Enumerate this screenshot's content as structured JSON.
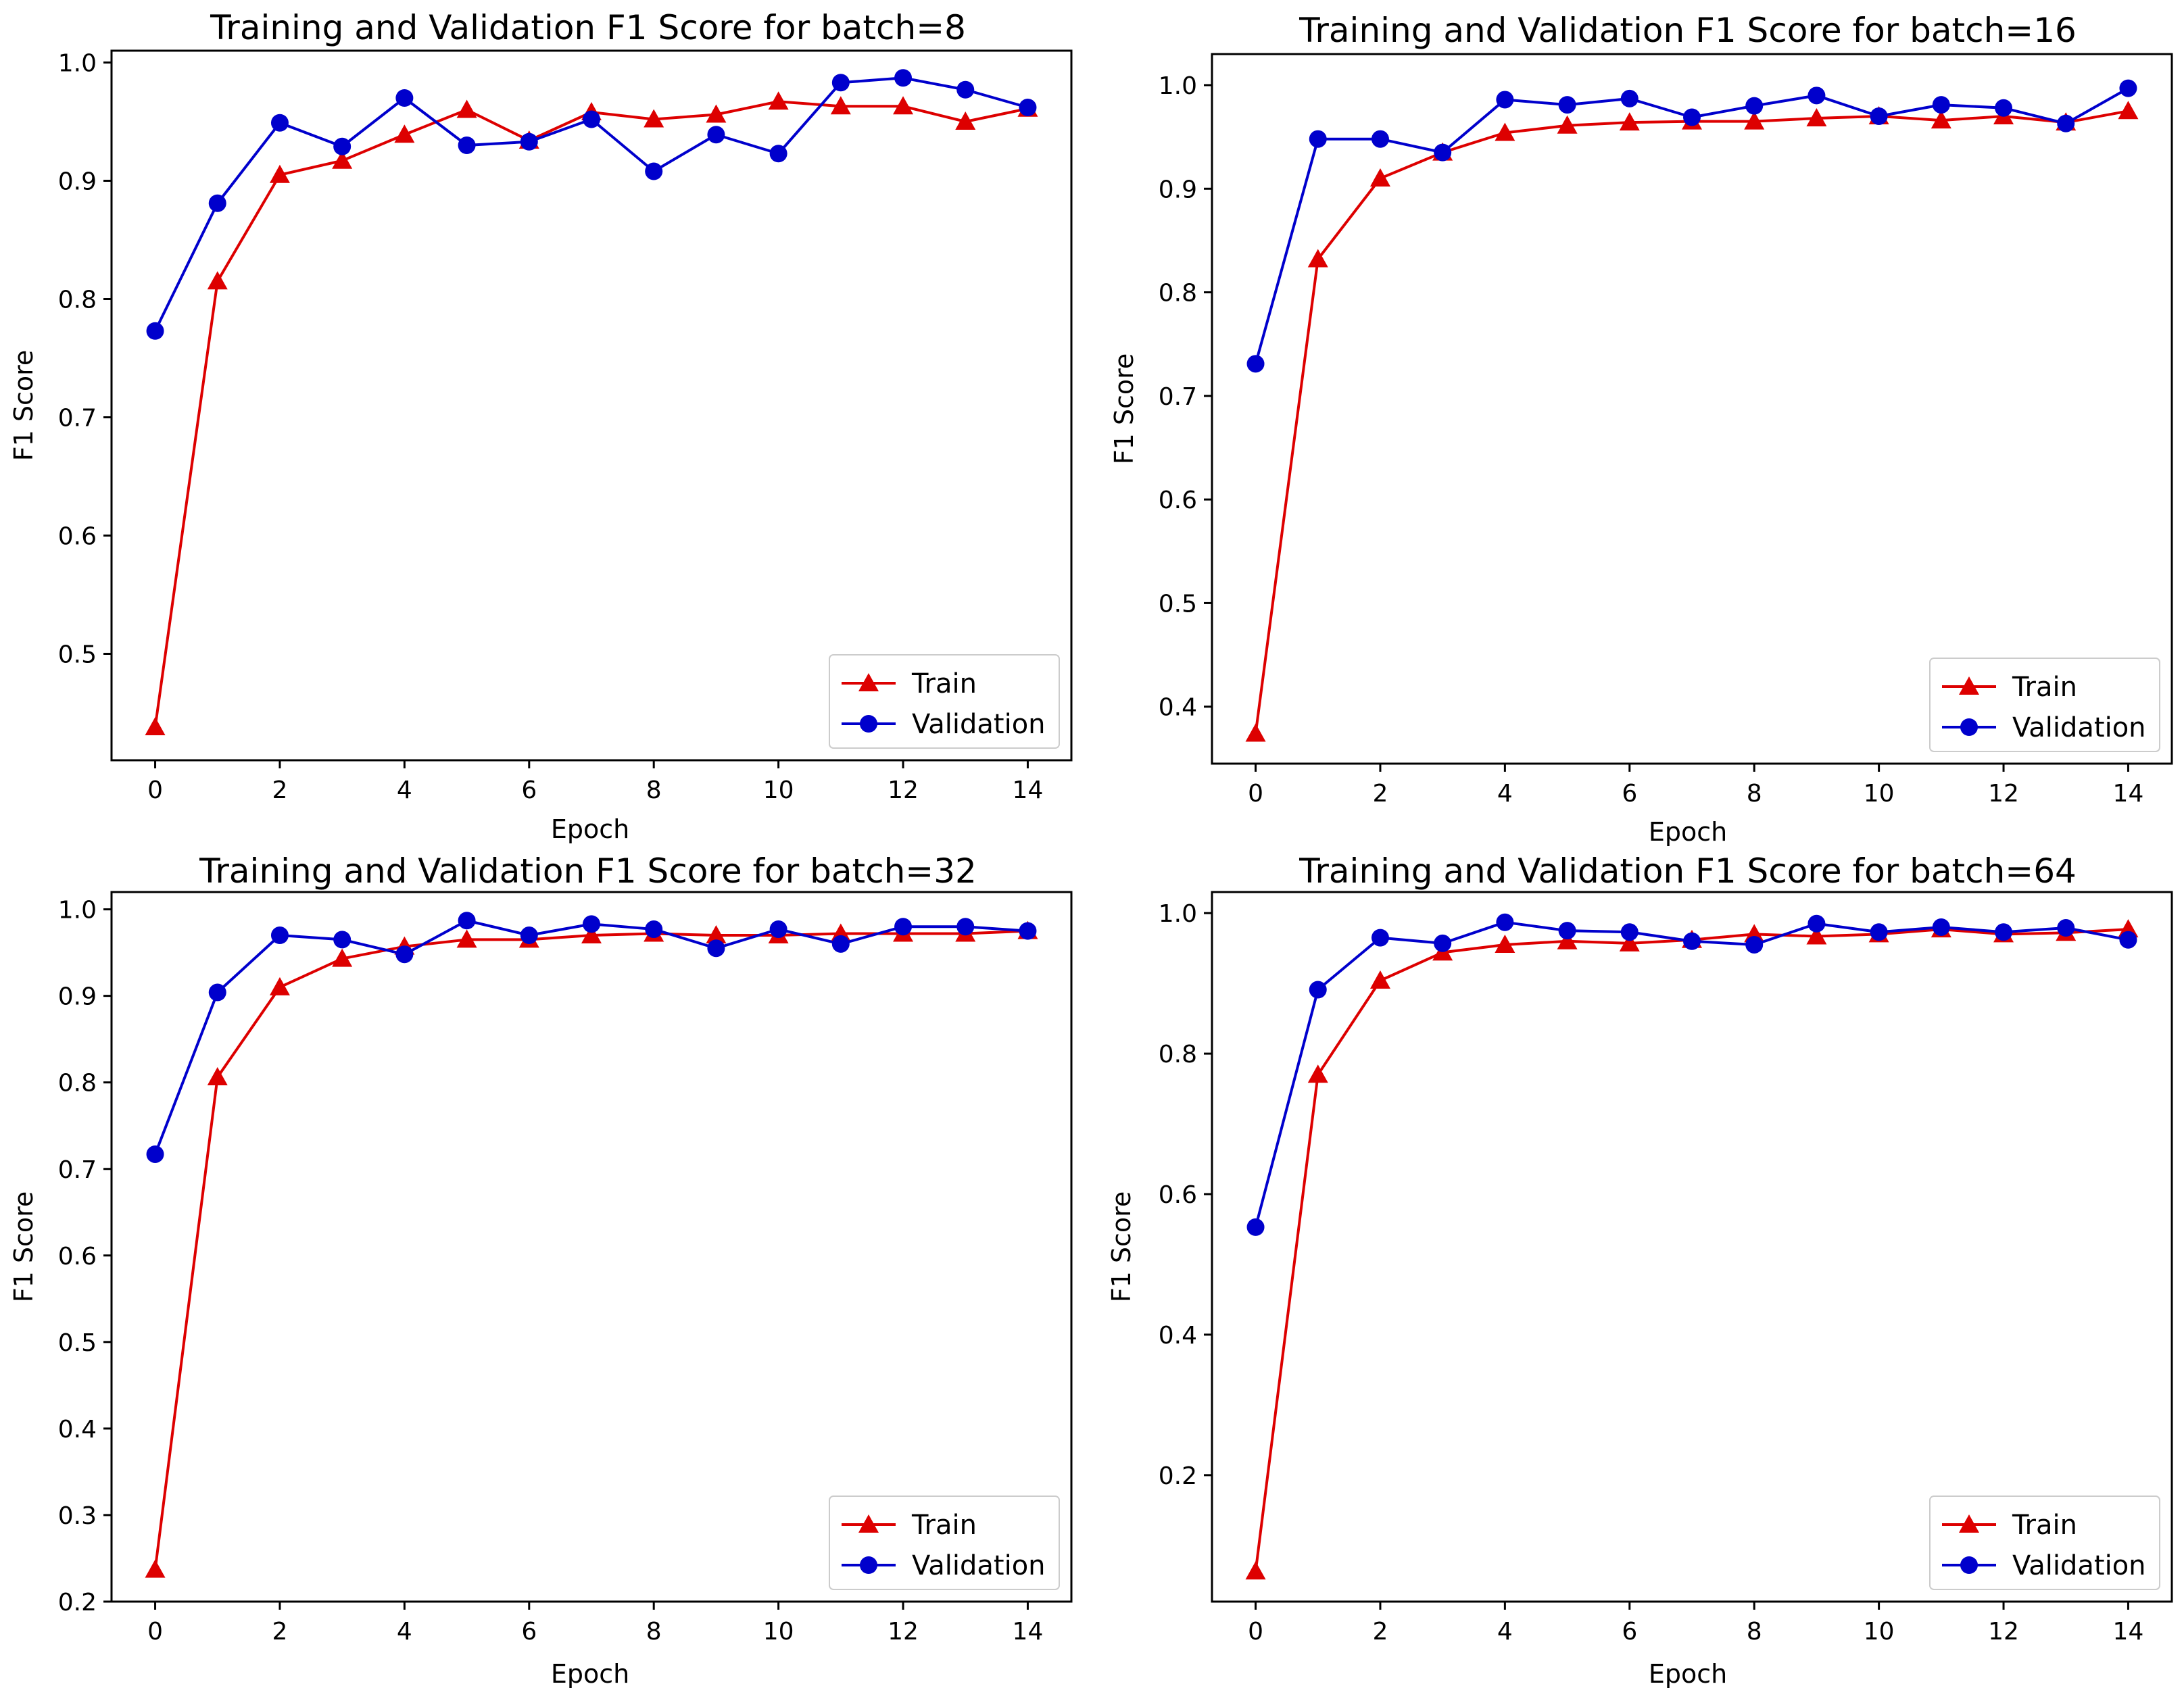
{
  "colors": {
    "train": "#dd0000",
    "validation": "#0000cc",
    "axes": "#000000",
    "legend_border": "#cccccc"
  },
  "chart_data": [
    {
      "type": "line",
      "title": "Training and Validation F1 Score for batch=8",
      "xlabel": "Epoch",
      "ylabel": "F1 Score",
      "xlim": [
        -0.7,
        14.7
      ],
      "ylim": [
        0.41,
        1.01
      ],
      "xticks": [
        0,
        2,
        4,
        6,
        8,
        10,
        12,
        14
      ],
      "xtick_labels": [
        "0",
        "2",
        "4",
        "6",
        "8",
        "10",
        "12",
        "14"
      ],
      "yticks": [
        0.5,
        0.6,
        0.7,
        0.8,
        0.9,
        1.0
      ],
      "ytick_labels": [
        "0.5",
        "0.6",
        "0.7",
        "0.8",
        "0.9",
        "1.0"
      ],
      "legend_position": "lower-right",
      "x": [
        0,
        1,
        2,
        3,
        4,
        5,
        6,
        7,
        8,
        9,
        10,
        11,
        12,
        13,
        14
      ],
      "series": [
        {
          "name": "Train",
          "marker": "triangle",
          "color_key": "train",
          "values": [
            0.438,
            0.815,
            0.905,
            0.917,
            0.939,
            0.96,
            0.934,
            0.958,
            0.952,
            0.956,
            0.967,
            0.963,
            0.963,
            0.95,
            0.961
          ]
        },
        {
          "name": "Validation",
          "marker": "circle",
          "color_key": "validation",
          "values": [
            0.773,
            0.881,
            0.949,
            0.929,
            0.97,
            0.93,
            0.933,
            0.952,
            0.908,
            0.939,
            0.923,
            0.983,
            0.987,
            0.977,
            0.962
          ]
        }
      ]
    },
    {
      "type": "line",
      "title": "Training and Validation F1 Score for batch=16",
      "xlabel": "Epoch",
      "ylabel": "F1 Score",
      "xlim": [
        -0.7,
        14.7
      ],
      "ylim": [
        0.345,
        1.03
      ],
      "xticks": [
        0,
        2,
        4,
        6,
        8,
        10,
        12,
        14
      ],
      "xtick_labels": [
        "0",
        "2",
        "4",
        "6",
        "8",
        "10",
        "12",
        "14"
      ],
      "yticks": [
        0.4,
        0.5,
        0.6,
        0.7,
        0.8,
        0.9,
        1.0
      ],
      "ytick_labels": [
        "0.4",
        "0.5",
        "0.6",
        "0.7",
        "0.8",
        "0.9",
        "1.0"
      ],
      "legend_position": "lower-right",
      "x": [
        0,
        1,
        2,
        3,
        4,
        5,
        6,
        7,
        8,
        9,
        10,
        11,
        12,
        13,
        14
      ],
      "series": [
        {
          "name": "Train",
          "marker": "triangle",
          "color_key": "train",
          "values": [
            0.374,
            0.832,
            0.91,
            0.935,
            0.954,
            0.961,
            0.964,
            0.965,
            0.965,
            0.968,
            0.97,
            0.966,
            0.97,
            0.964,
            0.975
          ]
        },
        {
          "name": "Validation",
          "marker": "circle",
          "color_key": "validation",
          "values": [
            0.731,
            0.948,
            0.948,
            0.935,
            0.986,
            0.981,
            0.987,
            0.969,
            0.98,
            0.99,
            0.97,
            0.981,
            0.978,
            0.963,
            0.997
          ]
        }
      ]
    },
    {
      "type": "line",
      "title": "Training and Validation F1 Score for batch=32",
      "xlabel": "Epoch",
      "ylabel": "F1 Score",
      "xlim": [
        -0.7,
        14.7
      ],
      "ylim": [
        0.2,
        1.02
      ],
      "xticks": [
        0,
        2,
        4,
        6,
        8,
        10,
        12,
        14
      ],
      "xtick_labels": [
        "0",
        "2",
        "4",
        "6",
        "8",
        "10",
        "12",
        "14"
      ],
      "yticks": [
        0.2,
        0.3,
        0.4,
        0.5,
        0.6,
        0.7,
        0.8,
        0.9,
        1.0
      ],
      "ytick_labels": [
        "0.2",
        "0.3",
        "0.4",
        "0.5",
        "0.6",
        "0.7",
        "0.8",
        "0.9",
        "1.0"
      ],
      "legend_position": "lower-right",
      "x": [
        0,
        1,
        2,
        3,
        4,
        5,
        6,
        7,
        8,
        9,
        10,
        11,
        12,
        13,
        14
      ],
      "series": [
        {
          "name": "Train",
          "marker": "triangle",
          "color_key": "train",
          "values": [
            0.237,
            0.806,
            0.91,
            0.943,
            0.957,
            0.965,
            0.965,
            0.97,
            0.972,
            0.97,
            0.97,
            0.972,
            0.972,
            0.972,
            0.975
          ]
        },
        {
          "name": "Validation",
          "marker": "circle",
          "color_key": "validation",
          "values": [
            0.717,
            0.904,
            0.97,
            0.965,
            0.948,
            0.987,
            0.97,
            0.983,
            0.977,
            0.955,
            0.977,
            0.96,
            0.98,
            0.98,
            0.975
          ]
        }
      ]
    },
    {
      "type": "line",
      "title": "Training and Validation F1 Score for batch=64",
      "xlabel": "Epoch",
      "ylabel": "F1 Score",
      "xlim": [
        -0.7,
        14.7
      ],
      "ylim": [
        0.02,
        1.03
      ],
      "xticks": [
        0,
        2,
        4,
        6,
        8,
        10,
        12,
        14
      ],
      "xtick_labels": [
        "0",
        "2",
        "4",
        "6",
        "8",
        "10",
        "12",
        "14"
      ],
      "yticks": [
        0.2,
        0.4,
        0.6,
        0.8,
        1.0
      ],
      "ytick_labels": [
        "0.2",
        "0.4",
        "0.6",
        "0.8",
        "1.0"
      ],
      "legend_position": "lower-right",
      "x": [
        0,
        1,
        2,
        3,
        4,
        5,
        6,
        7,
        8,
        9,
        10,
        11,
        12,
        13,
        14
      ],
      "series": [
        {
          "name": "Train",
          "marker": "triangle",
          "color_key": "train",
          "values": [
            0.063,
            0.77,
            0.904,
            0.944,
            0.955,
            0.96,
            0.957,
            0.962,
            0.97,
            0.967,
            0.97,
            0.977,
            0.97,
            0.972,
            0.977
          ]
        },
        {
          "name": "Validation",
          "marker": "circle",
          "color_key": "validation",
          "values": [
            0.553,
            0.891,
            0.965,
            0.957,
            0.987,
            0.975,
            0.973,
            0.96,
            0.955,
            0.985,
            0.973,
            0.98,
            0.973,
            0.979,
            0.962
          ]
        }
      ]
    }
  ]
}
